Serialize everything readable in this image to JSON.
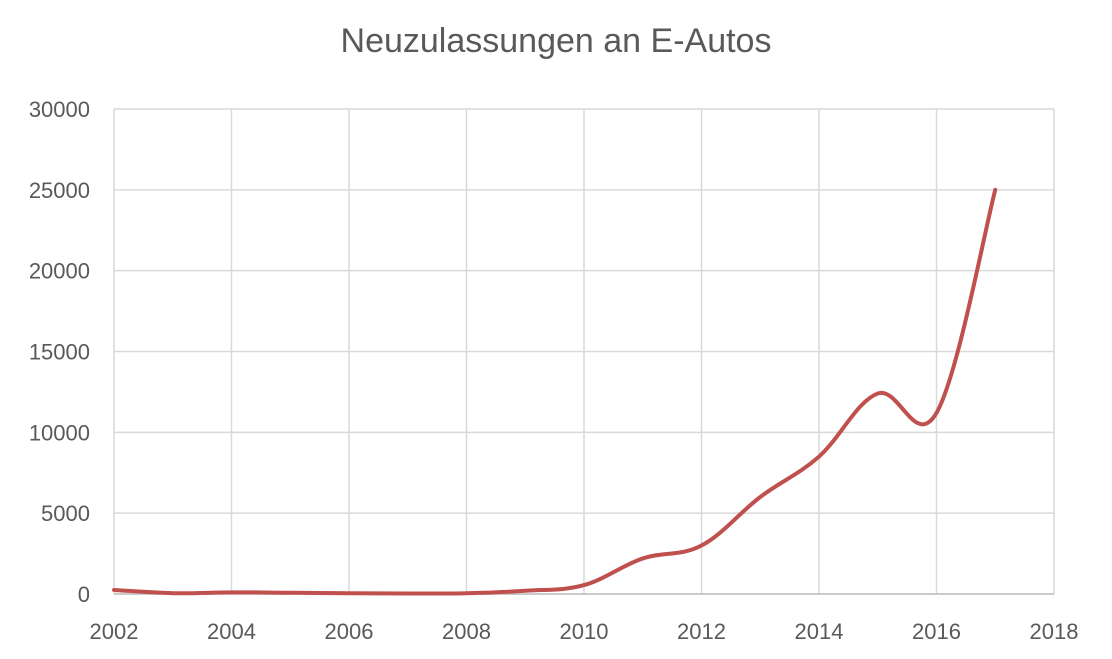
{
  "chart_data": {
    "type": "line",
    "title": "Neuzulassungen an E-Autos",
    "xlabel": "",
    "ylabel": "",
    "xlim": [
      2002,
      2018
    ],
    "ylim": [
      0,
      30000
    ],
    "x_ticks": [
      "2002",
      "2004",
      "2006",
      "2008",
      "2010",
      "2012",
      "2014",
      "2016",
      "2018"
    ],
    "y_ticks": [
      "0",
      "5000",
      "10000",
      "15000",
      "20000",
      "25000",
      "30000"
    ],
    "grid": true,
    "legend": "none",
    "line_color": "#c0504d",
    "series": [
      {
        "x": [
          2002,
          2003,
          2004,
          2005,
          2006,
          2007,
          2008,
          2009,
          2010,
          2011,
          2012,
          2013,
          2014,
          2015,
          2016,
          2017
        ],
        "values": [
          250,
          50,
          100,
          80,
          50,
          30,
          50,
          200,
          550,
          2200,
          3000,
          6000,
          8500,
          12400,
          11200,
          25000
        ]
      }
    ]
  }
}
